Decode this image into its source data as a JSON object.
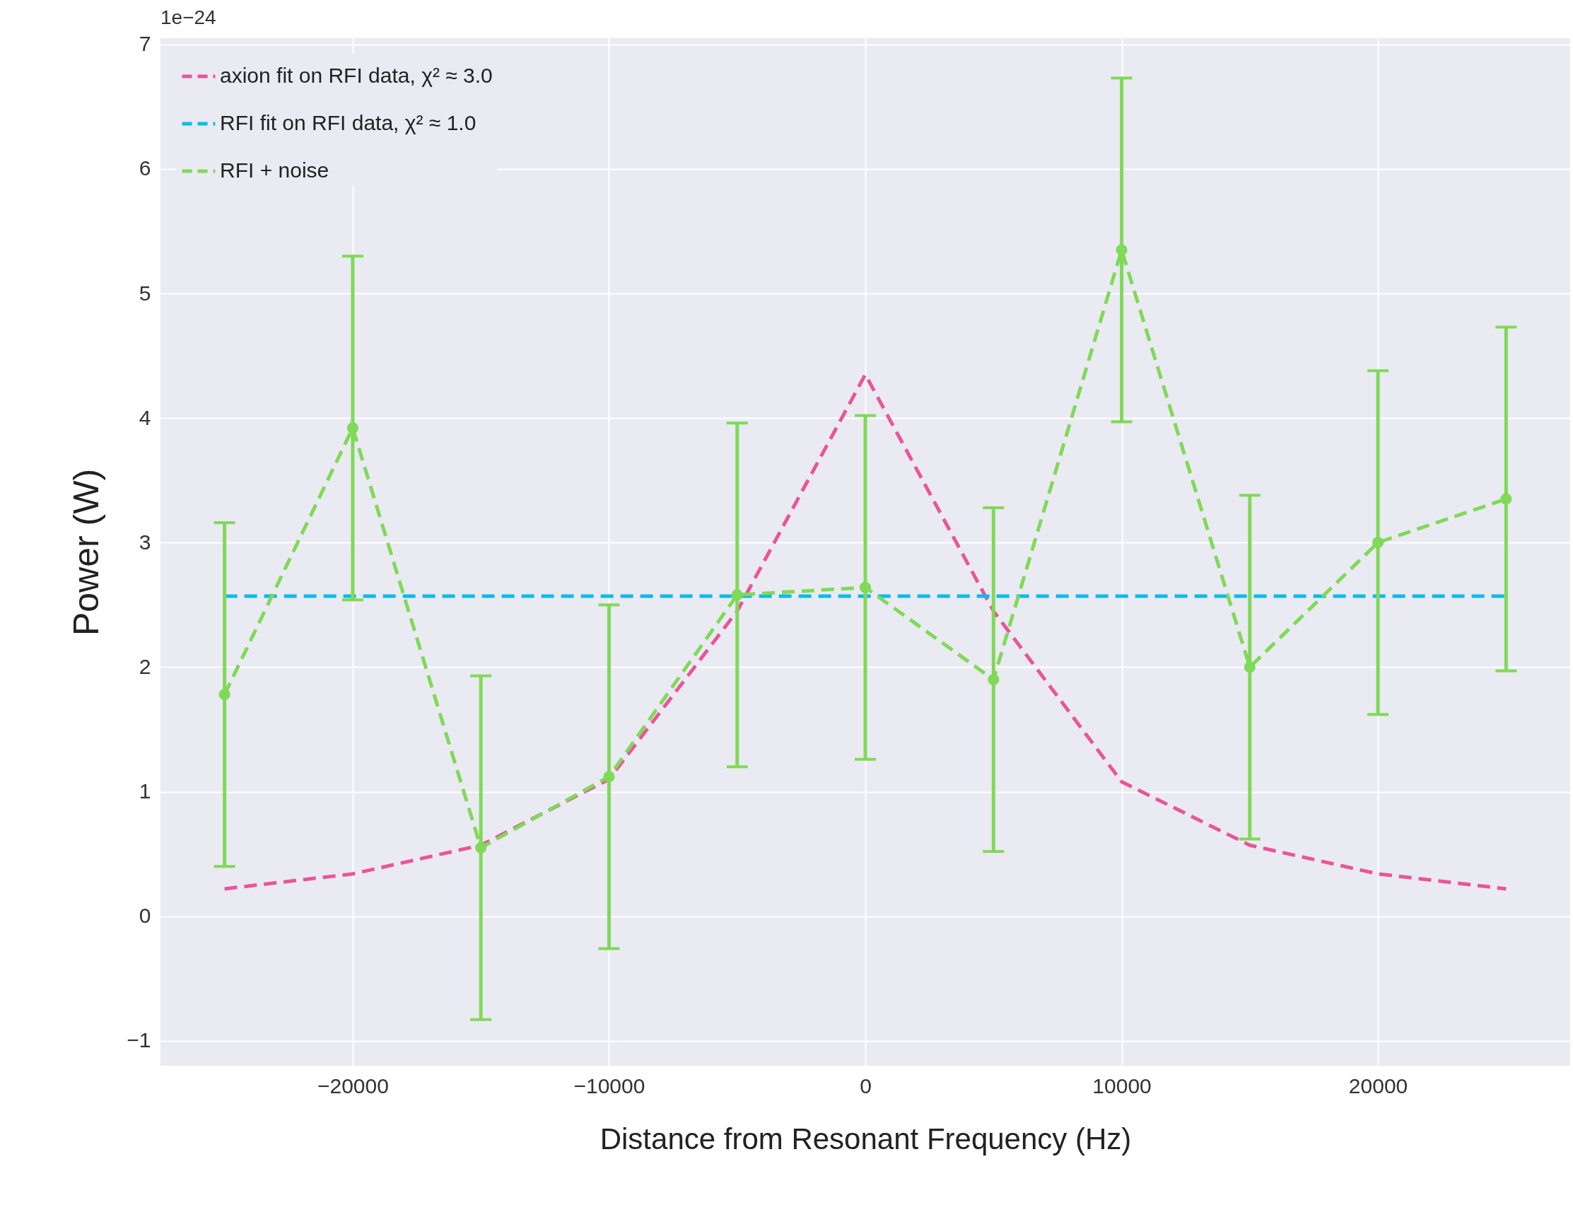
{
  "chart_data": {
    "type": "line",
    "xlabel": "Distance from Resonant Frequency (Hz)",
    "ylabel": "Power (W)",
    "annotations": [
      "1e−24"
    ],
    "x": [
      -25000,
      -20000,
      -15000,
      -10000,
      -5000,
      0,
      5000,
      10000,
      15000,
      20000,
      25000
    ],
    "series": [
      {
        "name": "axion fit on RFI data, χ² ≈ 3.0",
        "color": "#e8559a",
        "line_style": "dashed",
        "values": [
          0.22,
          0.34,
          0.57,
          1.1,
          2.45,
          4.35,
          2.45,
          1.08,
          0.57,
          0.34,
          0.22
        ]
      },
      {
        "name": "RFI fit on RFI data, χ² ≈ 1.0",
        "color": "#0abce8",
        "line_style": "dashed",
        "values": [
          2.57,
          2.57,
          2.57,
          2.57,
          2.57,
          2.57,
          2.57,
          2.57,
          2.57,
          2.57,
          2.57
        ]
      },
      {
        "name": "RFI + noise",
        "color": "#80d957",
        "line_style": "dashed",
        "marker": "circle",
        "values": [
          1.78,
          3.92,
          0.55,
          1.12,
          2.58,
          2.64,
          1.9,
          5.35,
          2.0,
          3.0,
          3.35
        ],
        "errors": [
          1.38,
          1.38,
          1.38,
          1.38,
          1.38,
          1.38,
          1.38,
          1.38,
          1.38,
          1.38,
          1.38
        ]
      }
    ],
    "xlim": [
      -27500,
      27500
    ],
    "xticks": [
      -20000,
      -10000,
      0,
      10000,
      20000
    ],
    "ylim": [
      -1.2,
      7.05
    ],
    "yticks": [
      -1,
      0,
      1,
      2,
      3,
      4,
      5,
      6,
      7
    ],
    "grid": true,
    "legend": "top left"
  }
}
